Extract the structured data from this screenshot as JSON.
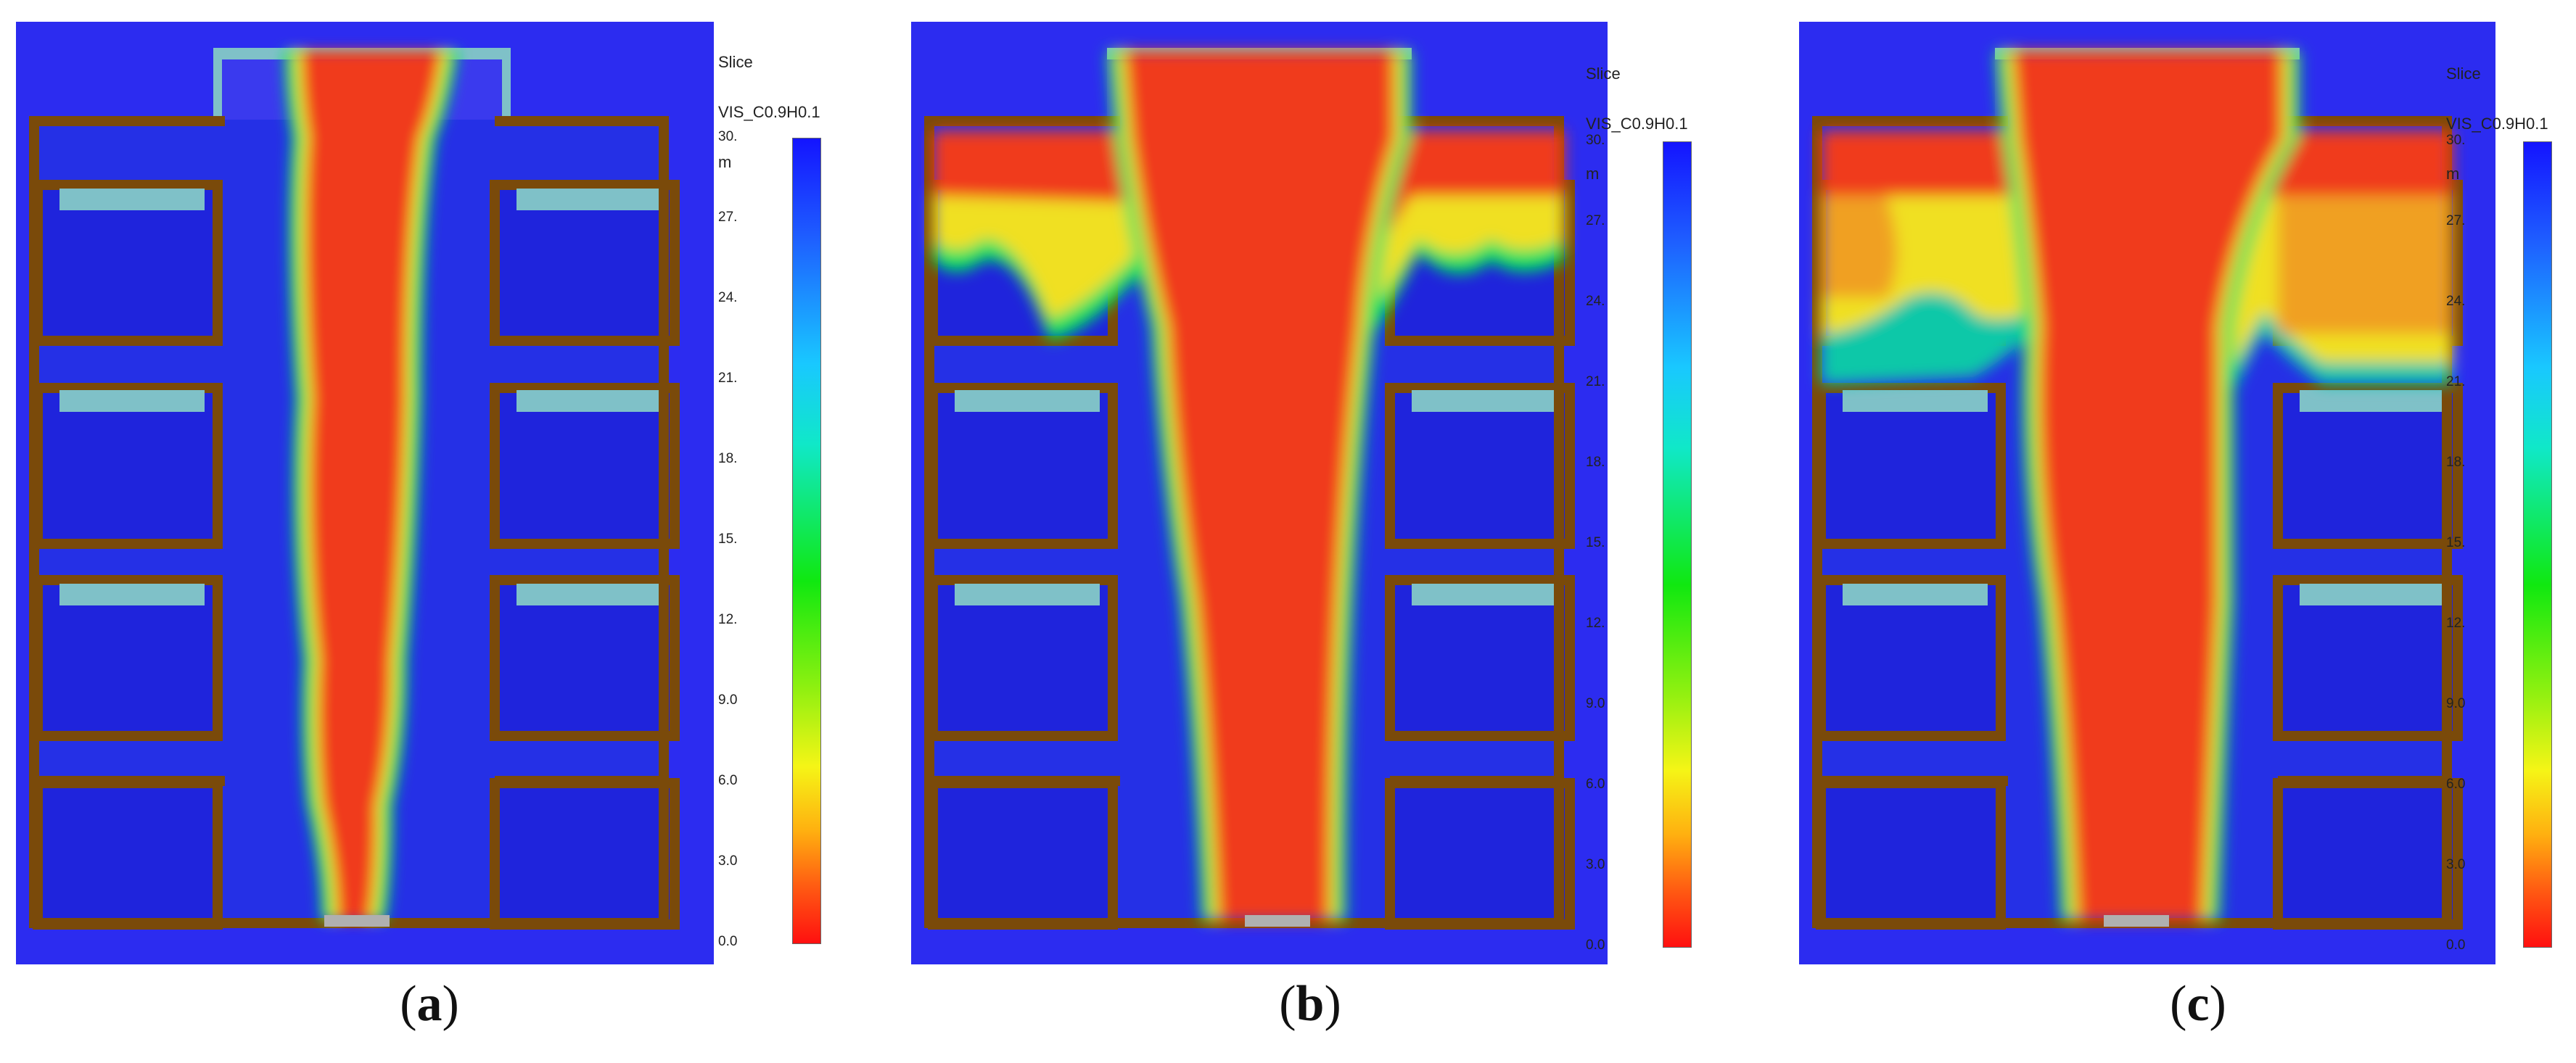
{
  "figure": {
    "panels": [
      {
        "id": "a",
        "caption_open": "(",
        "caption_letter": "a",
        "caption_close": ")",
        "legend": {
          "line1": "Slice",
          "line2": "VIS_C0.9H0.1",
          "line3": "m"
        }
      },
      {
        "id": "b",
        "caption_open": "(",
        "caption_letter": "b",
        "caption_close": ")",
        "legend": {
          "line1": "Slice",
          "line2": "VIS_C0.9H0.1",
          "line3": "m"
        }
      },
      {
        "id": "c",
        "caption_open": "(",
        "caption_letter": "c",
        "caption_close": ")",
        "legend": {
          "line1": "Slice",
          "line2": "VIS_C0.9H0.1",
          "line3": "m"
        }
      }
    ],
    "colorbar_ticks": [
      "30.",
      "27.",
      "24.",
      "21.",
      "18.",
      "15.",
      "12.",
      "9.0",
      "6.0",
      "3.0",
      "0.0"
    ],
    "colors": {
      "background_blue": "#2c2cf0",
      "room_blue": "#1f24dc",
      "wall_brown": "#7a4a0a",
      "smoke_red": "#f03a1a",
      "glass": "#7fc1c8"
    }
  }
}
